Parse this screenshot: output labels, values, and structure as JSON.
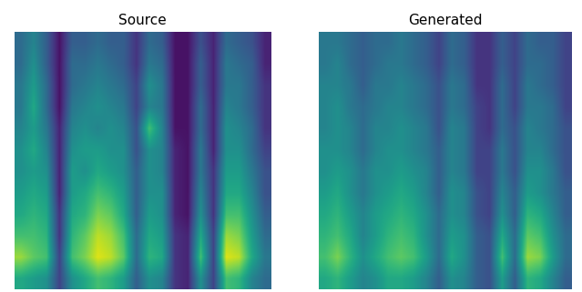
{
  "chart_data": [
    {
      "type": "heatmap",
      "title": "Source",
      "color": "viridis",
      "color_range": [
        0,
        1
      ],
      "tick_labels": false,
      "cells": [
        [
          0.35,
          0.45,
          0.3,
          0.05,
          0.3,
          0.3,
          0.35,
          0.3,
          0.3,
          0.15,
          0.35,
          0.3,
          0.05,
          0.05,
          0.25,
          0.1,
          0.35,
          0.3,
          0.25,
          0.1
        ],
        [
          0.35,
          0.5,
          0.3,
          0.05,
          0.35,
          0.35,
          0.4,
          0.35,
          0.3,
          0.15,
          0.4,
          0.35,
          0.05,
          0.05,
          0.3,
          0.1,
          0.4,
          0.35,
          0.3,
          0.1
        ],
        [
          0.4,
          0.55,
          0.35,
          0.05,
          0.35,
          0.4,
          0.45,
          0.4,
          0.35,
          0.2,
          0.5,
          0.4,
          0.05,
          0.05,
          0.3,
          0.1,
          0.4,
          0.4,
          0.3,
          0.15
        ],
        [
          0.4,
          0.6,
          0.35,
          0.05,
          0.4,
          0.45,
          0.5,
          0.45,
          0.4,
          0.2,
          0.45,
          0.4,
          0.05,
          0.05,
          0.35,
          0.1,
          0.45,
          0.4,
          0.3,
          0.15
        ],
        [
          0.45,
          0.55,
          0.4,
          0.1,
          0.45,
          0.5,
          0.45,
          0.5,
          0.45,
          0.25,
          0.7,
          0.45,
          0.05,
          0.05,
          0.35,
          0.1,
          0.5,
          0.45,
          0.35,
          0.15
        ],
        [
          0.5,
          0.6,
          0.45,
          0.1,
          0.5,
          0.55,
          0.55,
          0.5,
          0.5,
          0.25,
          0.5,
          0.45,
          0.1,
          0.05,
          0.4,
          0.1,
          0.5,
          0.5,
          0.35,
          0.2
        ],
        [
          0.5,
          0.55,
          0.5,
          0.1,
          0.55,
          0.5,
          0.6,
          0.55,
          0.5,
          0.3,
          0.5,
          0.45,
          0.1,
          0.05,
          0.4,
          0.15,
          0.55,
          0.55,
          0.4,
          0.25
        ],
        [
          0.55,
          0.6,
          0.55,
          0.1,
          0.55,
          0.6,
          0.7,
          0.65,
          0.55,
          0.3,
          0.5,
          0.5,
          0.1,
          0.05,
          0.45,
          0.15,
          0.6,
          0.6,
          0.45,
          0.25
        ],
        [
          0.6,
          0.65,
          0.6,
          0.15,
          0.6,
          0.65,
          0.8,
          0.75,
          0.6,
          0.3,
          0.55,
          0.5,
          0.1,
          0.05,
          0.5,
          0.15,
          0.7,
          0.7,
          0.5,
          0.3
        ],
        [
          0.7,
          0.7,
          0.65,
          0.15,
          0.65,
          0.75,
          0.9,
          0.85,
          0.7,
          0.35,
          0.6,
          0.55,
          0.15,
          0.1,
          0.6,
          0.2,
          0.85,
          0.8,
          0.55,
          0.35
        ],
        [
          0.85,
          0.75,
          0.7,
          0.2,
          0.7,
          0.8,
          0.95,
          0.9,
          0.75,
          0.35,
          0.65,
          0.6,
          0.15,
          0.1,
          0.7,
          0.2,
          0.95,
          0.9,
          0.6,
          0.4
        ],
        [
          0.6,
          0.55,
          0.5,
          0.2,
          0.5,
          0.6,
          0.7,
          0.65,
          0.55,
          0.3,
          0.5,
          0.45,
          0.15,
          0.1,
          0.5,
          0.2,
          0.7,
          0.65,
          0.45,
          0.35
        ]
      ]
    },
    {
      "type": "heatmap",
      "title": "Generated",
      "color": "viridis",
      "color_range": [
        0,
        1
      ],
      "tick_labels": false,
      "cells": [
        [
          0.4,
          0.4,
          0.35,
          0.3,
          0.35,
          0.35,
          0.4,
          0.35,
          0.3,
          0.2,
          0.35,
          0.3,
          0.15,
          0.15,
          0.3,
          0.2,
          0.35,
          0.3,
          0.3,
          0.2
        ],
        [
          0.4,
          0.45,
          0.35,
          0.3,
          0.35,
          0.4,
          0.4,
          0.35,
          0.3,
          0.2,
          0.35,
          0.3,
          0.15,
          0.15,
          0.3,
          0.2,
          0.35,
          0.35,
          0.3,
          0.2
        ],
        [
          0.45,
          0.45,
          0.4,
          0.3,
          0.4,
          0.4,
          0.45,
          0.4,
          0.35,
          0.25,
          0.4,
          0.35,
          0.15,
          0.15,
          0.35,
          0.2,
          0.4,
          0.35,
          0.3,
          0.2
        ],
        [
          0.45,
          0.5,
          0.4,
          0.35,
          0.4,
          0.45,
          0.45,
          0.4,
          0.35,
          0.25,
          0.4,
          0.35,
          0.2,
          0.15,
          0.35,
          0.2,
          0.4,
          0.4,
          0.35,
          0.2
        ],
        [
          0.45,
          0.5,
          0.45,
          0.35,
          0.45,
          0.45,
          0.5,
          0.45,
          0.4,
          0.25,
          0.45,
          0.4,
          0.2,
          0.15,
          0.35,
          0.25,
          0.45,
          0.4,
          0.35,
          0.25
        ],
        [
          0.5,
          0.5,
          0.45,
          0.35,
          0.45,
          0.5,
          0.5,
          0.45,
          0.4,
          0.3,
          0.45,
          0.4,
          0.2,
          0.2,
          0.4,
          0.25,
          0.45,
          0.45,
          0.35,
          0.25
        ],
        [
          0.5,
          0.55,
          0.5,
          0.4,
          0.5,
          0.5,
          0.55,
          0.5,
          0.45,
          0.3,
          0.45,
          0.4,
          0.2,
          0.2,
          0.4,
          0.25,
          0.5,
          0.5,
          0.4,
          0.25
        ],
        [
          0.55,
          0.6,
          0.5,
          0.4,
          0.5,
          0.55,
          0.6,
          0.55,
          0.45,
          0.3,
          0.5,
          0.45,
          0.25,
          0.2,
          0.45,
          0.3,
          0.55,
          0.5,
          0.4,
          0.3
        ],
        [
          0.6,
          0.65,
          0.55,
          0.45,
          0.55,
          0.6,
          0.65,
          0.6,
          0.5,
          0.35,
          0.5,
          0.45,
          0.25,
          0.2,
          0.5,
          0.3,
          0.65,
          0.6,
          0.45,
          0.3
        ],
        [
          0.65,
          0.7,
          0.6,
          0.45,
          0.55,
          0.65,
          0.7,
          0.65,
          0.5,
          0.35,
          0.55,
          0.5,
          0.3,
          0.25,
          0.6,
          0.35,
          0.75,
          0.7,
          0.5,
          0.35
        ],
        [
          0.7,
          0.8,
          0.65,
          0.5,
          0.6,
          0.7,
          0.75,
          0.7,
          0.55,
          0.35,
          0.6,
          0.5,
          0.3,
          0.25,
          0.7,
          0.35,
          0.85,
          0.8,
          0.55,
          0.35
        ],
        [
          0.6,
          0.65,
          0.55,
          0.45,
          0.5,
          0.6,
          0.6,
          0.55,
          0.45,
          0.3,
          0.5,
          0.45,
          0.3,
          0.25,
          0.55,
          0.3,
          0.65,
          0.6,
          0.45,
          0.3
        ]
      ]
    }
  ]
}
